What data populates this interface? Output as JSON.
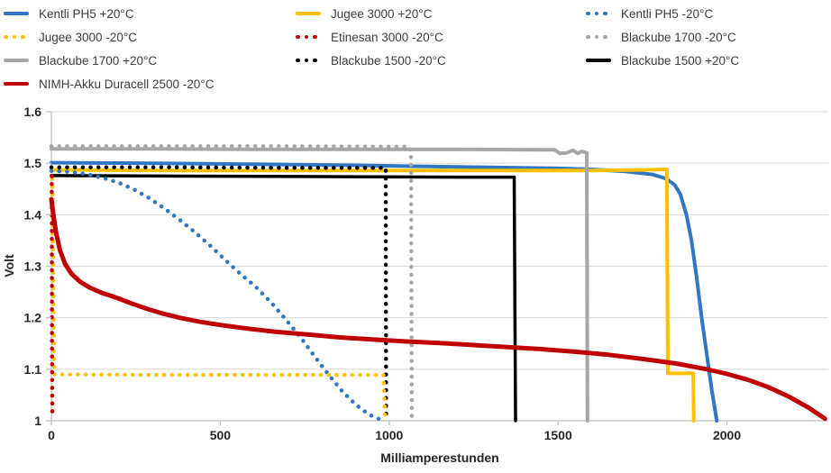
{
  "colors": {
    "blue": "#2F76C3",
    "yellow": "#FFC000",
    "gray": "#A6A6A6",
    "black": "#000000",
    "red": "#C00000",
    "grid": "#D9D9D9",
    "axis": "#BFBFBF",
    "tick_text": "#262626",
    "legend_text": "#3D3D3D"
  },
  "legend": {
    "items": [
      {
        "label": "Kentli PH5 +20°C",
        "color": "#2F76C3",
        "style": "solid"
      },
      {
        "label": "Jugee 3000 +20°C",
        "color": "#FFC000",
        "style": "solid"
      },
      {
        "label": "Kentli PH5 -20°C",
        "color": "#2F76C3",
        "style": "dotted"
      },
      {
        "label": "Jugee 3000 -20°C",
        "color": "#FFC000",
        "style": "dotted"
      },
      {
        "label": "Etinesan 3000 -20°C",
        "color": "#C00000",
        "style": "dotted"
      },
      {
        "label": "Blackube 1700 -20°C",
        "color": "#A6A6A6",
        "style": "dotted"
      },
      {
        "label": "Blackube 1700 +20°C",
        "color": "#A6A6A6",
        "style": "solid"
      },
      {
        "label": "Blackube 1500 -20°C",
        "color": "#000000",
        "style": "dotted"
      },
      {
        "label": "Blackube 1500 +20°C",
        "color": "#000000",
        "style": "solid"
      },
      {
        "label": "NIMH-Akku Duracell 2500 -20°C",
        "color": "#C00000",
        "style": "solid"
      }
    ]
  },
  "chart_data": {
    "type": "line",
    "xlabel": "Milliamperestunden",
    "ylabel": "Volt",
    "xlim": [
      0,
      2300
    ],
    "ylim": [
      1.0,
      1.6
    ],
    "x_ticks": [
      0,
      500,
      1000,
      1500,
      2000
    ],
    "x_tick_labels": [
      "0",
      "500",
      "1000",
      "1500",
      "2000"
    ],
    "y_ticks": [
      1.0,
      1.1,
      1.2,
      1.3,
      1.4,
      1.5,
      1.6
    ],
    "y_tick_labels": [
      "1",
      "1.1",
      "1.2",
      "1.3",
      "1.4",
      "1.5",
      "1.6"
    ],
    "grid": "horizontal",
    "legend_position": "top",
    "series": [
      {
        "name": "Kentli PH5 +20°C",
        "color": "#2F76C3",
        "style": "solid",
        "width": 4,
        "points": [
          [
            0,
            1.501
          ],
          [
            300,
            1.5
          ],
          [
            600,
            1.498
          ],
          [
            900,
            1.496
          ],
          [
            1200,
            1.493
          ],
          [
            1500,
            1.49
          ],
          [
            1600,
            1.488
          ],
          [
            1700,
            1.484
          ],
          [
            1780,
            1.478
          ],
          [
            1820,
            1.47
          ],
          [
            1845,
            1.458
          ],
          [
            1862,
            1.44
          ],
          [
            1880,
            1.4
          ],
          [
            1895,
            1.35
          ],
          [
            1910,
            1.28
          ],
          [
            1925,
            1.2
          ],
          [
            1940,
            1.13
          ],
          [
            1955,
            1.06
          ],
          [
            1970,
            1.0
          ]
        ]
      },
      {
        "name": "Jugee 3000 +20°C",
        "color": "#FFC000",
        "style": "solid",
        "width": 4,
        "points": [
          [
            0,
            1.487
          ],
          [
            400,
            1.486
          ],
          [
            800,
            1.486
          ],
          [
            1200,
            1.486
          ],
          [
            1600,
            1.486
          ],
          [
            1750,
            1.487
          ],
          [
            1822,
            1.488
          ],
          [
            1825,
            1.092
          ],
          [
            1900,
            1.092
          ],
          [
            1902,
            1.0
          ]
        ]
      },
      {
        "name": "Blackube 1700 +20°C",
        "color": "#A6A6A6",
        "style": "solid",
        "width": 4,
        "points": [
          [
            0,
            1.528
          ],
          [
            300,
            1.528
          ],
          [
            600,
            1.527
          ],
          [
            900,
            1.527
          ],
          [
            1200,
            1.527
          ],
          [
            1450,
            1.526
          ],
          [
            1490,
            1.526
          ],
          [
            1505,
            1.519
          ],
          [
            1525,
            1.52
          ],
          [
            1545,
            1.525
          ],
          [
            1558,
            1.519
          ],
          [
            1570,
            1.523
          ],
          [
            1585,
            1.52
          ],
          [
            1587,
            1.0
          ]
        ]
      },
      {
        "name": "Blackube 1500 +20°C",
        "color": "#000000",
        "style": "solid",
        "width": 3.5,
        "points": [
          [
            0,
            1.476
          ],
          [
            400,
            1.475
          ],
          [
            800,
            1.474
          ],
          [
            1200,
            1.473
          ],
          [
            1370,
            1.473
          ],
          [
            1374,
            1.0
          ]
        ]
      },
      {
        "name": "Blackube 1700 -20°C",
        "color": "#A6A6A6",
        "style": "dotted",
        "width": 4.5,
        "points": [
          [
            0,
            1.533
          ],
          [
            350,
            1.533
          ],
          [
            700,
            1.533
          ],
          [
            1060,
            1.532
          ],
          [
            1065,
            1.51
          ],
          [
            1067,
            1.0
          ]
        ]
      },
      {
        "name": "Blackube 1500 -20°C",
        "color": "#000000",
        "style": "dotted",
        "width": 4.5,
        "points": [
          [
            0,
            1.492
          ],
          [
            350,
            1.492
          ],
          [
            700,
            1.491
          ],
          [
            990,
            1.491
          ],
          [
            991,
            1.0
          ]
        ]
      },
      {
        "name": "Kentli PH5 -20°C",
        "color": "#2F76C3",
        "style": "dotted",
        "width": 4.5,
        "points": [
          [
            0,
            1.485
          ],
          [
            60,
            1.483
          ],
          [
            110,
            1.478
          ],
          [
            155,
            1.471
          ],
          [
            200,
            1.462
          ],
          [
            245,
            1.449
          ],
          [
            290,
            1.432
          ],
          [
            335,
            1.412
          ],
          [
            380,
            1.39
          ],
          [
            425,
            1.366
          ],
          [
            470,
            1.34
          ],
          [
            515,
            1.312
          ],
          [
            560,
            1.285
          ],
          [
            605,
            1.26
          ],
          [
            650,
            1.23
          ],
          [
            695,
            1.196
          ],
          [
            740,
            1.16
          ],
          [
            785,
            1.12
          ],
          [
            820,
            1.09
          ],
          [
            860,
            1.058
          ],
          [
            900,
            1.032
          ],
          [
            940,
            1.012
          ],
          [
            975,
            1.002
          ]
        ]
      },
      {
        "name": "Jugee 3000 -20°C",
        "color": "#FFC000",
        "style": "dotted",
        "width": 4.5,
        "points": [
          [
            3,
            1.47
          ],
          [
            6,
            1.25
          ],
          [
            8,
            1.09
          ],
          [
            300,
            1.089
          ],
          [
            600,
            1.089
          ],
          [
            900,
            1.089
          ],
          [
            983,
            1.089
          ],
          [
            986,
            1.04
          ],
          [
            988,
            1.005
          ]
        ]
      },
      {
        "name": "Etinesan 3000 -20°C",
        "color": "#C00000",
        "style": "dotted",
        "width": 4.5,
        "points": [
          [
            1,
            1.475
          ],
          [
            1.5,
            1.3
          ],
          [
            2,
            1.15
          ],
          [
            3,
            1.01
          ]
        ]
      },
      {
        "name": "NIMH-Akku Duracell 2500 -20°C",
        "color": "#C00000",
        "style": "solid",
        "width": 5,
        "points": [
          [
            0,
            1.43
          ],
          [
            6,
            1.4
          ],
          [
            14,
            1.365
          ],
          [
            25,
            1.332
          ],
          [
            40,
            1.305
          ],
          [
            60,
            1.285
          ],
          [
            85,
            1.27
          ],
          [
            115,
            1.258
          ],
          [
            150,
            1.248
          ],
          [
            170,
            1.244
          ],
          [
            200,
            1.237
          ],
          [
            240,
            1.227
          ],
          [
            280,
            1.218
          ],
          [
            330,
            1.208
          ],
          [
            380,
            1.2
          ],
          [
            440,
            1.192
          ],
          [
            500,
            1.186
          ],
          [
            580,
            1.179
          ],
          [
            660,
            1.173
          ],
          [
            750,
            1.168
          ],
          [
            850,
            1.162
          ],
          [
            950,
            1.158
          ],
          [
            1050,
            1.154
          ],
          [
            1150,
            1.151
          ],
          [
            1250,
            1.147
          ],
          [
            1350,
            1.143
          ],
          [
            1450,
            1.139
          ],
          [
            1550,
            1.134
          ],
          [
            1650,
            1.128
          ],
          [
            1750,
            1.12
          ],
          [
            1850,
            1.111
          ],
          [
            1940,
            1.1
          ],
          [
            2000,
            1.091
          ],
          [
            2060,
            1.08
          ],
          [
            2120,
            1.066
          ],
          [
            2180,
            1.048
          ],
          [
            2240,
            1.026
          ],
          [
            2290,
            1.004
          ]
        ]
      }
    ]
  }
}
